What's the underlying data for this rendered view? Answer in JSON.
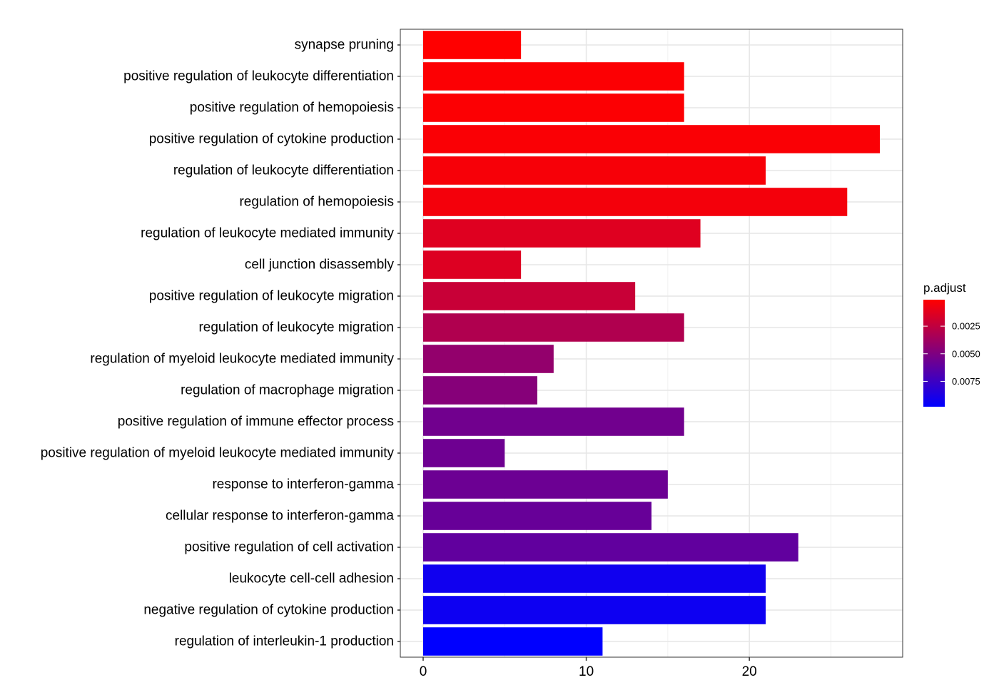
{
  "chart_data": {
    "type": "bar",
    "orientation": "horizontal",
    "categories": [
      "synapse pruning",
      "positive regulation of leukocyte differentiation",
      "positive regulation of hemopoiesis",
      "positive regulation of cytokine production",
      "regulation of leukocyte differentiation",
      "regulation of hemopoiesis",
      "regulation of leukocyte mediated immunity",
      "cell junction disassembly",
      "positive regulation of leukocyte migration",
      "regulation of leukocyte migration",
      "regulation of myeloid leukocyte mediated immunity",
      "regulation of macrophage migration",
      "positive regulation of immune effector process",
      "positive regulation of myeloid leukocyte mediated immunity",
      "response to interferon-gamma",
      "cellular response to interferon-gamma",
      "positive regulation of cell activation",
      "leukocyte cell-cell adhesion",
      "negative regulation of cytokine production",
      "regulation of interleukin-1 production"
    ],
    "values": [
      6,
      16,
      16,
      28,
      21,
      26,
      17,
      6,
      13,
      16,
      8,
      7,
      16,
      5,
      15,
      14,
      23,
      21,
      21,
      11
    ],
    "p_adjust": [
      0.0001,
      0.0002,
      0.0002,
      0.0003,
      0.0004,
      0.0005,
      0.0013,
      0.0014,
      0.0022,
      0.0031,
      0.0042,
      0.0047,
      0.0055,
      0.0056,
      0.0057,
      0.0059,
      0.0061,
      0.0092,
      0.0093,
      0.0098
    ],
    "x_ticks": [
      0,
      10,
      20
    ],
    "xlim": [
      -1.4,
      29.4
    ],
    "grid": true,
    "color_scale": {
      "title": "p.adjust",
      "low_color": "#ff0000",
      "high_color": "#0000ff",
      "range": [
        0.0001,
        0.0098
      ],
      "ticks": [
        0.0025,
        0.005,
        0.0075
      ],
      "tick_labels": [
        "0.0025",
        "0.0050",
        "0.0075"
      ]
    },
    "legend_position": "right"
  }
}
